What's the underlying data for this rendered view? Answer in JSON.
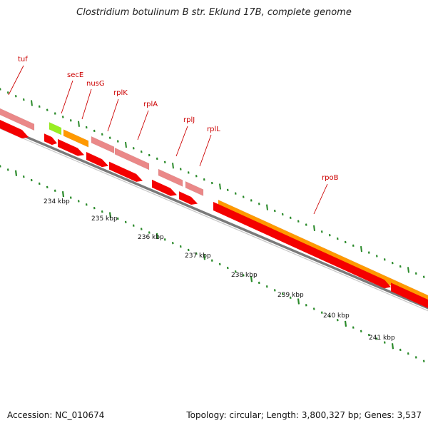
{
  "title": "Clostridium botulinum B str. Eklund 17B, complete genome",
  "accession": "Accession: NC_010674",
  "summary": "Topology: circular; Length: 3,800,327 bp; Genes: 3,537",
  "colors": {
    "cds": "#f40000",
    "trna_like": "#ea8888",
    "orange": "#ff9900",
    "green": "#99ee22",
    "tick": "#2a8a2a",
    "label": "#cc0000",
    "backbone": "#7a7a7a"
  },
  "scale_labels": [
    "234 kbp",
    "235 kbp",
    "236 kbp",
    "237 kbp",
    "238 kbp",
    "239 kbp",
    "240 kbp",
    "241 kbp"
  ],
  "gene_labels": [
    {
      "id": "tuf",
      "text": "tuf"
    },
    {
      "id": "secE",
      "text": "secE"
    },
    {
      "id": "nusG",
      "text": "nusG"
    },
    {
      "id": "rplK",
      "text": "rplK"
    },
    {
      "id": "rplA",
      "text": "rplA"
    },
    {
      "id": "rplJ",
      "text": "rplJ"
    },
    {
      "id": "rplL",
      "text": "rplL"
    },
    {
      "id": "rpoB",
      "text": "rpoB"
    }
  ]
}
